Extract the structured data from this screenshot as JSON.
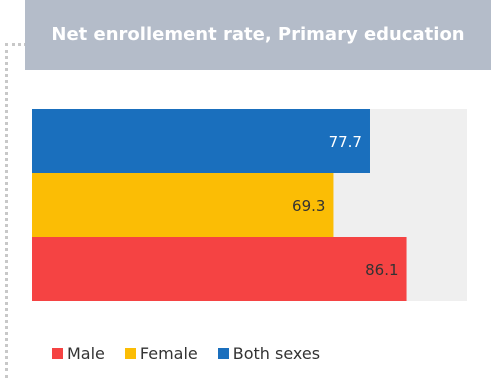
{
  "chart_data": {
    "type": "bar",
    "orientation": "horizontal",
    "title": "Net enrollement rate, Primary education",
    "categories": [
      "Both sexes",
      "Female",
      "Male"
    ],
    "values": [
      77.7,
      69.3,
      86.1
    ],
    "data_labels": [
      "77.7",
      "69.3",
      "86.1"
    ],
    "xlim": [
      0,
      100
    ],
    "grid": false,
    "legend_position": "bottom-left",
    "colors": {
      "Both sexes": "#1a6fbd",
      "Female": "#fbbd05",
      "Male": "#f54343",
      "background_track": "#efefef"
    },
    "legend": [
      {
        "label": "Male",
        "color": "#f54343"
      },
      {
        "label": "Female",
        "color": "#fbbd05"
      },
      {
        "label": "Both sexes",
        "color": "#1a6fbd"
      }
    ]
  }
}
